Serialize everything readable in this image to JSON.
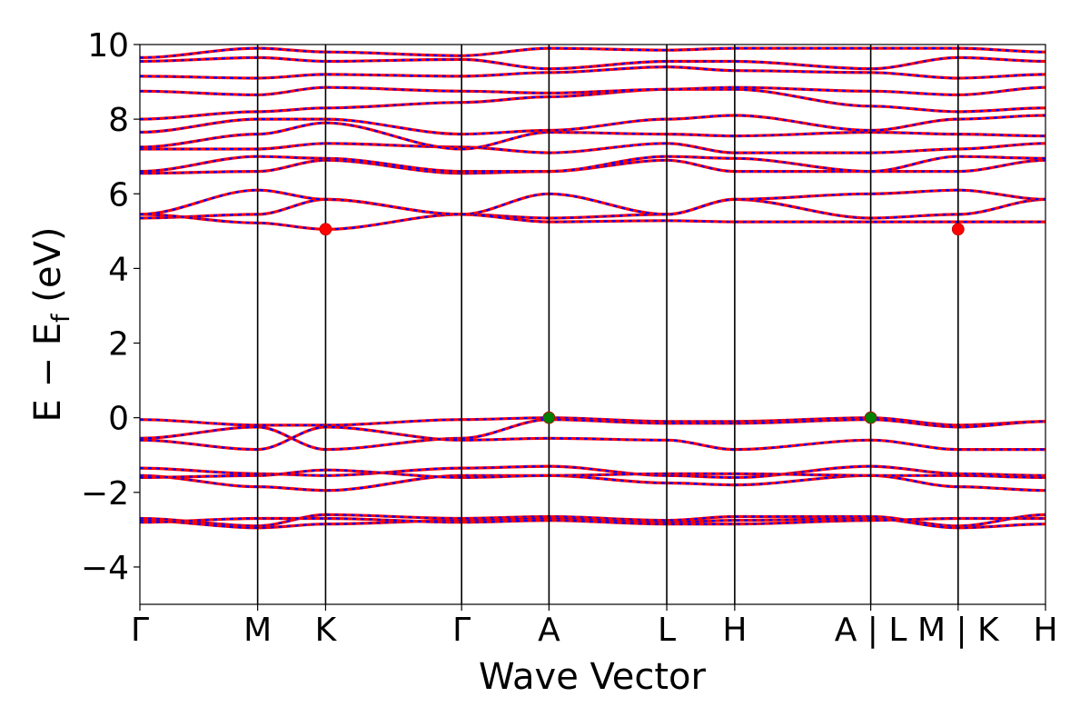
{
  "chart_data": {
    "type": "line",
    "title": "",
    "xlabel": "Wave Vector",
    "ylabel": "E − E",
    "ylabel_sub": "f",
    "ylabel_unit": "(eV)",
    "ylim": [
      -5,
      10
    ],
    "yticks": [
      {
        "value": -4,
        "label": "−4"
      },
      {
        "value": -2,
        "label": "−2"
      },
      {
        "value": 0,
        "label": "0"
      },
      {
        "value": 2,
        "label": "2"
      },
      {
        "value": 4,
        "label": "4"
      },
      {
        "value": 6,
        "label": "6"
      },
      {
        "value": 8,
        "label": "8"
      },
      {
        "value": 10,
        "label": "10"
      }
    ],
    "k_points": [
      {
        "label": "Γ",
        "k": 0.0
      },
      {
        "label": "M",
        "k": 1.0
      },
      {
        "label": "K",
        "k": 1.577
      },
      {
        "label": "Γ",
        "k": 2.732
      },
      {
        "label": "A",
        "k": 3.474
      },
      {
        "label": "L",
        "k": 4.474
      },
      {
        "label": "H",
        "k": 5.051
      },
      {
        "label": "A | L",
        "k": 6.206
      },
      {
        "label": "M | K",
        "k": 6.948
      },
      {
        "label": "H",
        "k": 7.69
      }
    ],
    "grid": false,
    "legend": "none",
    "line_colors": {
      "primary": "#ff0000",
      "secondary": "#0000ff"
    },
    "series": [
      {
        "values": [
          5.35,
          5.45,
          5.85,
          5.45,
          5.35,
          5.45,
          5.85,
          5.35,
          5.45,
          5.85
        ]
      },
      {
        "values": [
          5.45,
          5.22,
          5.05,
          5.45,
          5.25,
          5.28,
          5.25,
          5.25,
          5.25,
          5.25
        ]
      },
      {
        "values": [
          5.45,
          6.1,
          5.85,
          5.45,
          6.0,
          5.45,
          5.85,
          6.0,
          6.1,
          5.85
        ]
      },
      {
        "values": [
          6.55,
          6.6,
          6.9,
          6.55,
          6.6,
          6.9,
          6.6,
          6.6,
          6.6,
          6.9
        ]
      },
      {
        "values": [
          6.6,
          7.0,
          6.95,
          6.6,
          6.6,
          7.0,
          6.95,
          6.6,
          7.0,
          6.95
        ]
      },
      {
        "values": [
          7.2,
          7.2,
          7.35,
          7.25,
          7.1,
          7.35,
          7.1,
          7.1,
          7.2,
          7.35
        ]
      },
      {
        "values": [
          7.25,
          7.6,
          7.9,
          7.2,
          7.65,
          7.6,
          7.55,
          7.65,
          7.6,
          7.55
        ]
      },
      {
        "values": [
          7.65,
          8.0,
          8.0,
          7.6,
          7.7,
          8.0,
          8.1,
          7.7,
          8.0,
          8.1
        ]
      },
      {
        "values": [
          8.0,
          8.2,
          8.3,
          8.45,
          8.6,
          8.8,
          8.8,
          8.35,
          8.2,
          8.3
        ]
      },
      {
        "values": [
          8.75,
          8.65,
          8.85,
          8.75,
          8.7,
          8.8,
          8.85,
          8.75,
          8.65,
          8.85
        ]
      },
      {
        "values": [
          9.15,
          9.1,
          9.2,
          9.15,
          9.25,
          9.4,
          9.3,
          9.25,
          9.1,
          9.2
        ]
      },
      {
        "values": [
          9.55,
          9.65,
          9.55,
          9.6,
          9.35,
          9.55,
          9.55,
          9.35,
          9.65,
          9.55
        ]
      },
      {
        "values": [
          9.65,
          9.9,
          9.8,
          9.7,
          9.9,
          9.85,
          9.9,
          9.9,
          9.9,
          9.8
        ]
      },
      {
        "values": [
          -0.05,
          -0.2,
          -0.2,
          -0.05,
          0.0,
          -0.1,
          -0.1,
          0.0,
          -0.2,
          -0.1
        ]
      },
      {
        "values": [
          -0.55,
          -0.25,
          -0.85,
          -0.55,
          -0.05,
          -0.15,
          -0.15,
          -0.05,
          -0.25,
          -0.1
        ]
      },
      {
        "values": [
          -0.6,
          -0.85,
          -0.25,
          -0.6,
          -0.55,
          -0.6,
          -0.85,
          -0.6,
          -0.85,
          -0.85
        ]
      },
      {
        "values": [
          -1.35,
          -1.5,
          -1.55,
          -1.35,
          -1.3,
          -1.55,
          -1.6,
          -1.3,
          -1.5,
          -1.55
        ]
      },
      {
        "values": [
          -1.55,
          -1.85,
          -1.95,
          -1.55,
          -1.55,
          -1.75,
          -1.8,
          -1.55,
          -1.85,
          -1.95
        ]
      },
      {
        "values": [
          -1.6,
          -1.55,
          -1.4,
          -1.6,
          -1.55,
          -1.5,
          -1.5,
          -1.55,
          -1.55,
          -1.6
        ]
      },
      {
        "values": [
          -2.7,
          -2.9,
          -2.6,
          -2.7,
          -2.65,
          -2.75,
          -2.65,
          -2.65,
          -2.9,
          -2.6
        ]
      },
      {
        "values": [
          -2.75,
          -2.95,
          -2.85,
          -2.75,
          -2.7,
          -2.8,
          -2.75,
          -2.7,
          -2.95,
          -2.85
        ]
      },
      {
        "values": [
          -2.8,
          -2.7,
          -2.7,
          -2.8,
          -2.75,
          -2.85,
          -2.85,
          -2.75,
          -2.7,
          -2.7
        ]
      }
    ],
    "markers": [
      {
        "k": 1.577,
        "e": 5.05,
        "color": "#ff0000"
      },
      {
        "k": 6.948,
        "e": 5.05,
        "color": "#ff0000"
      },
      {
        "k": 3.474,
        "e": 0.0,
        "color": "#008000"
      },
      {
        "k": 6.206,
        "e": 0.0,
        "color": "#008000"
      }
    ]
  }
}
